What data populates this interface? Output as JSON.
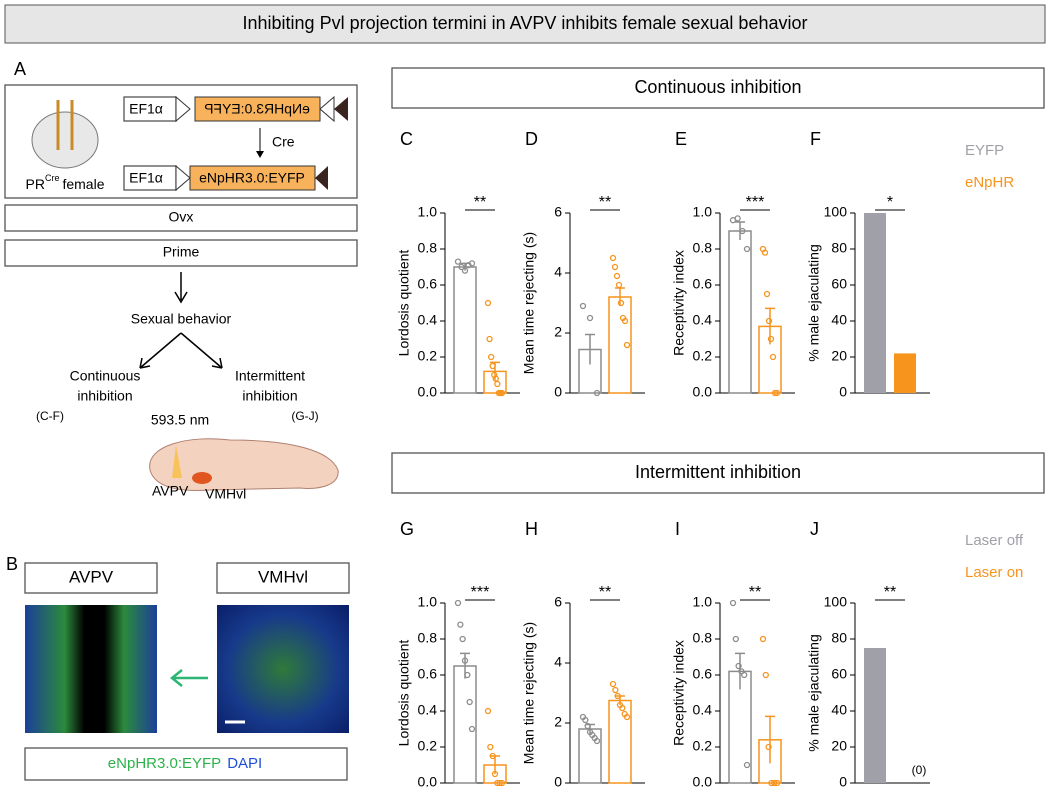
{
  "title": "Inhibiting Pvl projection termini in AVPV inhibits female sexual behavior",
  "panel_a": {
    "letter": "A",
    "promoter": "EF1α",
    "construct": "eNpHR3.0:EYFP",
    "recombinase": "Cre",
    "mouse_prefix": "PR",
    "mouse_sup": "Cre",
    "mouse_suffix": "female",
    "step1": "Ovx",
    "step2": "Prime",
    "behavior": "Sexual behavior",
    "left_1": "Continuous",
    "left_2": "inhibition",
    "right_1": "Intermittent",
    "right_2": "inhibition",
    "left_ref": "(C-F)",
    "right_ref": "(G-J)",
    "wavelength": "593.5 nm",
    "region1": "AVPV",
    "region2": "VMHvl"
  },
  "panel_b": {
    "letter": "B",
    "image1": "AVPV",
    "image2": "VMHvl",
    "stain1": "eNpHR3.0:EYFP",
    "stain2": "DAPI"
  },
  "sections": [
    "Continuous inhibition",
    "Intermittent inhibition"
  ],
  "chart_data": [
    {
      "type": "bar",
      "label": "C",
      "y_label": "Lordosis quotient",
      "ylim": [
        0,
        1
      ],
      "yticks": [
        {
          "value": 0,
          "label": "0.0"
        },
        0.2,
        0.4,
        0.6,
        0.8,
        {
          "value": 1,
          "label": "1.0"
        }
      ],
      "significance": "**",
      "series": [
        {
          "color": "#8c8c8c",
          "values": [
            0.7
          ],
          "errors": [
            0.02
          ],
          "points": [
            0.73,
            0.7,
            0.68,
            0.71,
            0.72
          ]
        },
        {
          "color": "#f7941d",
          "values": [
            0.12
          ],
          "errors": [
            0.05
          ],
          "points": [
            0.5,
            0.3,
            0.2,
            0.15,
            0.1,
            0.08,
            0.05,
            0,
            0,
            0
          ]
        }
      ]
    },
    {
      "type": "bar",
      "label": "D",
      "y_label": "Mean time rejecting (s)",
      "ylim": [
        0,
        6
      ],
      "yticks": [
        0,
        2,
        4,
        6
      ],
      "significance": "**",
      "series": [
        {
          "color": "#8c8c8c",
          "values": [
            1.45
          ],
          "errors": [
            0.5
          ],
          "points": [
            2.9,
            2.5,
            0
          ]
        },
        {
          "color": "#f7941d",
          "values": [
            3.2
          ],
          "errors": [
            0.3
          ],
          "points": [
            4.5,
            4.2,
            3.9,
            3.6,
            3.0,
            2.5,
            2.4,
            1.6
          ]
        }
      ]
    },
    {
      "type": "bar",
      "label": "E",
      "y_label": "Receptivity index",
      "ylim": [
        0,
        1
      ],
      "yticks": [
        {
          "value": 0,
          "label": "0.0"
        },
        0.2,
        0.4,
        0.6,
        0.8,
        {
          "value": 1,
          "label": "1.0"
        }
      ],
      "significance": "***",
      "series": [
        {
          "color": "#8c8c8c",
          "values": [
            0.9
          ],
          "errors": [
            0.05
          ],
          "points": [
            0.96,
            0.97,
            0.9,
            0.8
          ]
        },
        {
          "color": "#f7941d",
          "values": [
            0.37
          ],
          "errors": [
            0.1
          ],
          "points": [
            0.8,
            0.78,
            0.55,
            0.4,
            0.3,
            0.2,
            0,
            0
          ]
        }
      ]
    },
    {
      "type": "bar",
      "label": "F",
      "y_label": "% male ejaculating",
      "ylim": [
        0,
        100
      ],
      "yticks": [
        0,
        20,
        40,
        60,
        80,
        100
      ],
      "significance": "*",
      "filled": true,
      "series": [
        {
          "name": "EYFP",
          "color": "#a0a0a8",
          "values": [
            100
          ]
        },
        {
          "name": "eNpHR",
          "color": "#f7941d",
          "values": [
            22
          ]
        }
      ]
    },
    {
      "type": "bar",
      "label": "G",
      "y_label": "Lordosis quotient",
      "ylim": [
        0,
        1
      ],
      "yticks": [
        {
          "value": 0,
          "label": "0.0"
        },
        0.2,
        0.4,
        0.6,
        0.8,
        {
          "value": 1,
          "label": "1.0"
        }
      ],
      "significance": "***",
      "series": [
        {
          "color": "#8c8c8c",
          "values": [
            0.65
          ],
          "errors": [
            0.07
          ],
          "points": [
            1.0,
            0.88,
            0.8,
            0.68,
            0.6,
            0.45,
            0.3
          ]
        },
        {
          "color": "#f7941d",
          "values": [
            0.1
          ],
          "errors": [
            0.05
          ],
          "points": [
            0.4,
            0.2,
            0.15,
            0.05,
            0,
            0,
            0
          ]
        }
      ]
    },
    {
      "type": "bar",
      "label": "H",
      "y_label": "Mean time rejecting (s)",
      "ylim": [
        0,
        6
      ],
      "yticks": [
        0,
        2,
        4,
        6
      ],
      "significance": "**",
      "series": [
        {
          "color": "#8c8c8c",
          "values": [
            1.8
          ],
          "errors": [
            0.15
          ],
          "points": [
            2.2,
            2.1,
            1.9,
            1.7,
            1.6,
            1.5,
            1.4
          ]
        },
        {
          "color": "#f7941d",
          "values": [
            2.75
          ],
          "errors": [
            0.15
          ],
          "points": [
            3.3,
            3.1,
            2.9,
            2.6,
            2.5,
            2.3,
            2.2
          ]
        }
      ]
    },
    {
      "type": "bar",
      "label": "I",
      "y_label": "Receptivity index",
      "ylim": [
        0,
        1
      ],
      "yticks": [
        {
          "value": 0,
          "label": "0.0"
        },
        0.2,
        0.4,
        0.6,
        0.8,
        {
          "value": 1,
          "label": "1.0"
        }
      ],
      "significance": "**",
      "series": [
        {
          "color": "#8c8c8c",
          "values": [
            0.62
          ],
          "errors": [
            0.1
          ],
          "points": [
            1.0,
            0.8,
            0.65,
            0.62,
            0.6,
            0.1
          ]
        },
        {
          "color": "#f7941d",
          "values": [
            0.24
          ],
          "errors": [
            0.13
          ],
          "points": [
            0.8,
            0.6,
            0.2,
            0,
            0,
            0
          ]
        }
      ]
    },
    {
      "type": "bar",
      "label": "J",
      "y_label": "% male ejaculating",
      "ylim": [
        0,
        100
      ],
      "yticks": [
        0,
        20,
        40,
        60,
        80,
        100
      ],
      "significance": "**",
      "filled": true,
      "series": [
        {
          "name": "Laser off",
          "color": "#a0a0a8",
          "values": [
            75
          ]
        },
        {
          "name": "Laser on",
          "color": "#f7941d",
          "values": [
            0
          ],
          "value_labels": [
            "(0)"
          ]
        }
      ]
    }
  ]
}
